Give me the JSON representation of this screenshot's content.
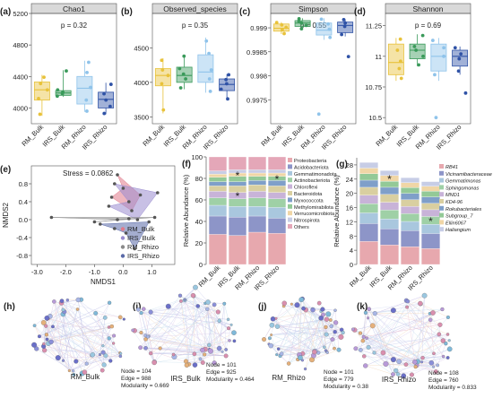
{
  "colors": {
    "rm_bulk": "#e8c23a",
    "irs_bulk": "#3a9a5a",
    "rm_rhizo": "#8fc3ea",
    "irs_rhizo": "#2f52a6",
    "strip_bg": "#d9d9d9",
    "rm_bulk_pcoa": "#e07a8a",
    "irs_bulk_pcoa": "#9a8ccf",
    "rm_rhizo_pcoa": "#8a8a8a",
    "irs_rhizo_pcoa": "#5a6aa8"
  },
  "chart_data": [
    {
      "type": "box",
      "panel_label": "(a)",
      "title": "Chao1",
      "p_text": "p = 0.32",
      "ylim": [
        3800,
        5200
      ],
      "yticks": [
        4000,
        4400,
        4800,
        5200
      ],
      "categories": [
        "RM_Bulk",
        "IRS_Bulk",
        "RM_Rhizo",
        "IRS_Rhizo"
      ],
      "series": [
        {
          "q1": 4100,
          "median": 4230,
          "q3": 4330,
          "whisker_low": 3900,
          "whisker_high": 4420,
          "points": [
            3920,
            4120,
            4230,
            4310,
            4390
          ]
        },
        {
          "q1": 4160,
          "median": 4190,
          "q3": 4220,
          "whisker_low": 4140,
          "whisker_high": 4480,
          "points": [
            4150,
            4180,
            4200,
            4230,
            4470
          ]
        },
        {
          "q1": 4050,
          "median": 4250,
          "q3": 4400,
          "whisker_low": 3950,
          "whisker_high": 4600,
          "points": [
            3960,
            4100,
            4260,
            4450,
            4580
          ]
        },
        {
          "q1": 4000,
          "median": 4110,
          "q3": 4200,
          "whisker_low": 3920,
          "whisker_high": 4320,
          "points": [
            3930,
            4020,
            4100,
            4180,
            4300
          ]
        }
      ]
    },
    {
      "type": "box",
      "panel_label": "(b)",
      "title": "Observed_species",
      "p_text": "p = 0.35",
      "ylim": [
        3400,
        5000
      ],
      "yticks": [
        3500,
        4000,
        4500
      ],
      "categories": [
        "RM_Bulk",
        "IRS_Bulk",
        "RM_Rhizo",
        "IRS_Rhizo"
      ],
      "series": [
        {
          "q1": 3950,
          "median": 4100,
          "q3": 4200,
          "whisker_low": 3550,
          "whisker_high": 4350,
          "points": [
            3600,
            3980,
            4100,
            4180,
            4320
          ]
        },
        {
          "q1": 4000,
          "median": 4100,
          "q3": 4220,
          "whisker_low": 3900,
          "whisker_high": 4400,
          "points": [
            3920,
            4050,
            4120,
            4200,
            4380
          ]
        },
        {
          "q1": 4000,
          "median": 4150,
          "q3": 4400,
          "whisker_low": 3850,
          "whisker_high": 4650,
          "points": [
            3870,
            4050,
            4180,
            4420,
            4600
          ]
        },
        {
          "q1": 3880,
          "median": 3970,
          "q3": 4050,
          "whisker_low": 3750,
          "whisker_high": 4120,
          "points": [
            3760,
            3900,
            3980,
            4040,
            4110
          ]
        }
      ]
    },
    {
      "type": "box",
      "panel_label": "(c)",
      "title": "Simpson",
      "p_text": "p = 0.55",
      "ylim": [
        0.997,
        0.9993
      ],
      "yticks": [
        0.9975,
        0.998,
        0.9985,
        0.999
      ],
      "categories": [
        "RM_Bulk",
        "IRS_Bulk",
        "RM_Rhizo",
        "IRS_Rhizo"
      ],
      "series": [
        {
          "q1": 0.99893,
          "median": 0.99899,
          "q3": 0.99908,
          "whisker_low": 0.99887,
          "whisker_high": 0.99912,
          "points": [
            0.99888,
            0.99896,
            0.99901,
            0.99906,
            0.99911
          ]
        },
        {
          "q1": 0.99903,
          "median": 0.9991,
          "q3": 0.99915,
          "whisker_low": 0.99897,
          "whisker_high": 0.9992,
          "points": [
            0.99898,
            0.99905,
            0.9991,
            0.99914,
            0.99919
          ]
        },
        {
          "q1": 0.99885,
          "median": 0.99895,
          "q3": 0.9991,
          "whisker_low": 0.99875,
          "whisker_high": 0.9992,
          "points": [
            0.9972,
            0.9988,
            0.99897,
            0.99908,
            0.99918
          ]
        },
        {
          "q1": 0.9989,
          "median": 0.99905,
          "q3": 0.99912,
          "whisker_low": 0.99882,
          "whisker_high": 0.99918,
          "points": [
            0.9984,
            0.99886,
            0.99903,
            0.9991,
            0.99917
          ]
        }
      ]
    },
    {
      "type": "box",
      "panel_label": "(d)",
      "title": "Shannon",
      "p_text": "p = 0.69",
      "ylim": [
        10.45,
        11.35
      ],
      "yticks": [
        10.5,
        10.75,
        11.0,
        11.25
      ],
      "categories": [
        "RM_Bulk",
        "IRS_Bulk",
        "RM_Rhizo",
        "IRS_Rhizo"
      ],
      "series": [
        {
          "q1": 10.85,
          "median": 10.95,
          "q3": 11.1,
          "whisker_low": 10.8,
          "whisker_high": 11.15,
          "points": [
            10.82,
            10.9,
            10.96,
            11.05,
            11.14
          ]
        },
        {
          "q1": 10.98,
          "median": 11.05,
          "q3": 11.1,
          "whisker_low": 10.92,
          "whisker_high": 11.18,
          "points": [
            10.93,
            11.0,
            11.05,
            11.08,
            11.17
          ]
        },
        {
          "q1": 10.88,
          "median": 11.0,
          "q3": 11.1,
          "whisker_low": 10.8,
          "whisker_high": 11.15,
          "points": [
            10.5,
            10.85,
            11.0,
            11.07,
            11.13
          ]
        },
        {
          "q1": 10.92,
          "median": 11.0,
          "q3": 11.05,
          "whisker_low": 10.85,
          "whisker_high": 11.08,
          "points": [
            10.7,
            10.88,
            10.98,
            11.02,
            11.07
          ]
        }
      ]
    },
    {
      "type": "scatter",
      "panel_label": "(e)",
      "stress_text": "Stress = 0.0862",
      "xlabel": "NMDS1",
      "ylabel": "NMDS2",
      "xlim": [
        -3.2,
        1.8
      ],
      "ylim": [
        -1.0,
        1.2
      ],
      "xticks": [
        -3.0,
        -2.0,
        -1.0,
        0.0,
        1.0
      ],
      "yticks": [
        -0.8,
        -0.4,
        0.0,
        0.4,
        0.8
      ],
      "series": [
        {
          "name": "RM_Bulk",
          "points": [
            [
              -0.2,
              1.0
            ],
            [
              0.6,
              0.55
            ],
            [
              0.3,
              0.2
            ],
            [
              -0.4,
              0.5
            ],
            [
              0.0,
              0.7
            ]
          ]
        },
        {
          "name": "IRS_Bulk",
          "points": [
            [
              -0.3,
              0.8
            ],
            [
              1.2,
              0.6
            ],
            [
              0.5,
              0.0
            ],
            [
              -0.5,
              0.3
            ],
            [
              0.2,
              0.4
            ]
          ]
        },
        {
          "name": "RM_Rhizo",
          "points": [
            [
              -2.5,
              0.05
            ],
            [
              1.1,
              0.05
            ],
            [
              -1.0,
              -0.05
            ],
            [
              0.2,
              0.02
            ],
            [
              -0.2,
              0.0
            ]
          ]
        },
        {
          "name": "IRS_Rhizo",
          "points": [
            [
              -0.8,
              -0.1
            ],
            [
              0.9,
              -0.05
            ],
            [
              0.4,
              -0.65
            ],
            [
              0.1,
              -0.3
            ],
            [
              -0.3,
              -0.2
            ]
          ]
        }
      ]
    },
    {
      "type": "stacked_bar",
      "panel_label": "(f)",
      "ylabel": "Relative Abundance (%)",
      "ylim": [
        0,
        100
      ],
      "yticks": [
        0,
        20,
        40,
        60,
        80,
        100
      ],
      "categories": [
        "RM_Bulk",
        "IRS_Bulk",
        "RM_Rhizo",
        "IRS_Rhizo"
      ],
      "stars": [
        [
          1,
          8
        ],
        [
          1,
          4
        ],
        [
          3,
          7
        ]
      ],
      "series": [
        {
          "name": "Proteobacteria",
          "color": "#e7a8ae",
          "values": [
            28,
            27,
            30,
            29
          ]
        },
        {
          "name": "Acidobacteriota",
          "color": "#8d95c8",
          "values": [
            17,
            17,
            15,
            14
          ]
        },
        {
          "name": "Gemmatimonadota",
          "color": "#a9c7de",
          "values": [
            10,
            10,
            9,
            10
          ]
        },
        {
          "name": "Actinobacteriota",
          "color": "#9fd0a6",
          "values": [
            7,
            7,
            8,
            8
          ]
        },
        {
          "name": "Chloroflexi",
          "color": "#c8b3d8",
          "values": [
            6,
            6,
            6,
            6
          ]
        },
        {
          "name": "Bacteroidota",
          "color": "#d9cfa0",
          "values": [
            5,
            6,
            6,
            6
          ]
        },
        {
          "name": "Myxococcota",
          "color": "#7f9fc9",
          "values": [
            4,
            4,
            4,
            5
          ]
        },
        {
          "name": "Methylomirabilota",
          "color": "#93c997",
          "values": [
            4,
            5,
            4,
            4
          ]
        },
        {
          "name": "Verrucomicrobiota",
          "color": "#f0d6a6",
          "values": [
            3,
            3,
            3,
            3
          ]
        },
        {
          "name": "Nitrospirota",
          "color": "#c7cde6",
          "values": [
            3,
            3,
            3,
            3
          ]
        },
        {
          "name": "Others",
          "color": "#e4a7b8",
          "values": [
            13,
            12,
            12,
            12
          ]
        }
      ]
    },
    {
      "type": "stacked_bar",
      "panel_label": "(g)",
      "ylabel": "Relative Abundance (%)",
      "ylim": [
        0,
        30
      ],
      "yticks": [
        0,
        4,
        8,
        12,
        16,
        20,
        24,
        28
      ],
      "categories": [
        "RM_Bulk",
        "IRS_Bulk",
        "RM_Rhizo",
        "IRS_Rhizo"
      ],
      "stars": [
        [
          1,
          8
        ],
        [
          3,
          3
        ]
      ],
      "series": [
        {
          "name": "RB41",
          "color": "#e7a8ae",
          "values": [
            6.5,
            5.5,
            5.0,
            4.5
          ]
        },
        {
          "name": "Vicinamibacteraceae",
          "color": "#8d95c8",
          "values": [
            5.0,
            4.5,
            4.5,
            4.2
          ]
        },
        {
          "name": "Gemmatimonas",
          "color": "#a9c7de",
          "values": [
            3.0,
            2.8,
            2.6,
            2.6
          ]
        },
        {
          "name": "Sphingomonas",
          "color": "#9fd0a6",
          "values": [
            2.6,
            2.5,
            2.2,
            2.2
          ]
        },
        {
          "name": "MND1",
          "color": "#c8b3d8",
          "values": [
            2.4,
            2.2,
            2.0,
            1.9
          ]
        },
        {
          "name": "KD4-96",
          "color": "#d9cfa0",
          "values": [
            2.2,
            2.2,
            1.9,
            1.8
          ]
        },
        {
          "name": "Rokubacteriales",
          "color": "#7f9fc9",
          "values": [
            2.0,
            2.0,
            1.8,
            1.8
          ]
        },
        {
          "name": "Subgroup_7",
          "color": "#93c997",
          "values": [
            1.8,
            1.7,
            1.6,
            1.6
          ]
        },
        {
          "name": "Ellin6067",
          "color": "#f0d6a6",
          "values": [
            1.6,
            1.6,
            1.4,
            1.4
          ]
        },
        {
          "name": "Haliangium",
          "color": "#c7cde6",
          "values": [
            1.6,
            1.4,
            1.4,
            1.3
          ]
        }
      ]
    },
    {
      "type": "network",
      "panel_label": "(h)",
      "sample": "RM_Bulk",
      "node_text": "Node = 104",
      "edge_text": "Edge  =  988",
      "modularity_text": "Modularity = 0.669",
      "nodes": 104,
      "edges": 988,
      "modularity": 0.669
    },
    {
      "type": "network",
      "panel_label": "(i)",
      "sample": "IRS_Bulk",
      "node_text": "Node = 101",
      "edge_text": "Edge  = 925",
      "modularity_text": "Modularity = 0.464",
      "nodes": 101,
      "edges": 925,
      "modularity": 0.464
    },
    {
      "type": "network",
      "panel_label": "(j)",
      "sample": "RM_Rhizo",
      "node_text": "Node = 101",
      "edge_text": "Edge  = 779",
      "modularity_text": "Modularity = 0.38",
      "nodes": 101,
      "edges": 779,
      "modularity": 0.38
    },
    {
      "type": "network",
      "panel_label": "(k)",
      "sample": "IRS_Rhizo",
      "node_text": "Node = 108",
      "edge_text": "Edge  = 760",
      "modularity_text": "Modularity = 0.833",
      "nodes": 108,
      "edges": 760,
      "modularity": 0.833
    }
  ]
}
